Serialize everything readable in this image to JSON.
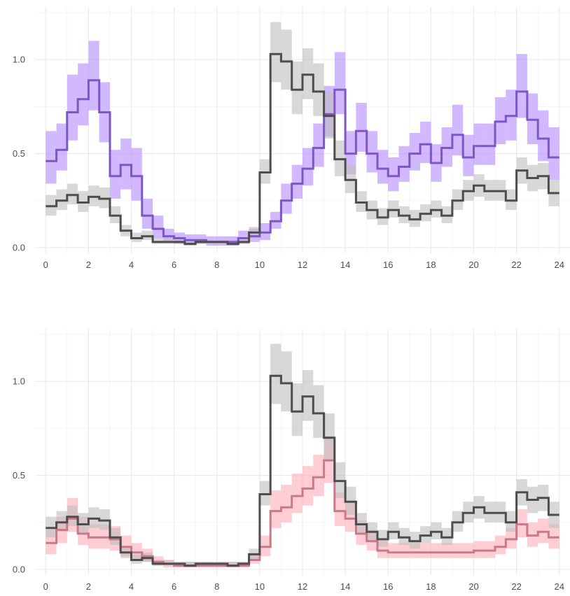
{
  "colors": {
    "background": "#ffffff",
    "grid_major": "#ebebeb",
    "grid_minor": "#f5f5f5",
    "tick_text": "#4d4d4d",
    "reference_line": "#4d4d4d",
    "reference_band": "#bebebe",
    "purple_line": "#7e57c2",
    "purple_band": "#b388ff",
    "pink_line": "#c97a8a",
    "pink_band": "#ffadb8"
  },
  "chart_data": [
    {
      "type": "line",
      "step": true,
      "grid": true,
      "x_ticks": [
        "0",
        "2",
        "4",
        "6",
        "8",
        "10",
        "12",
        "14",
        "16",
        "18",
        "20",
        "22",
        "24"
      ],
      "y_ticks": [
        "0.0",
        "0.5",
        "1.0"
      ],
      "xlim": [
        -0.5,
        24.5
      ],
      "ylim": [
        -0.03,
        1.28
      ],
      "x": [
        0,
        0.5,
        1,
        1.5,
        2,
        2.5,
        3,
        3.5,
        4,
        4.5,
        5,
        5.5,
        6,
        6.5,
        7,
        7.5,
        8,
        8.5,
        9,
        9.5,
        10,
        10.5,
        11,
        11.5,
        12,
        12.5,
        13,
        13.5,
        14,
        14.5,
        15,
        15.5,
        16,
        16.5,
        17,
        17.5,
        18,
        18.5,
        19,
        19.5,
        20,
        20.5,
        21,
        21.5,
        22,
        22.5,
        23,
        23.5
      ],
      "series": [
        {
          "color": "#7e57c2",
          "band_color": "#b388ff",
          "values": [
            0.46,
            0.52,
            0.72,
            0.79,
            0.89,
            0.72,
            0.38,
            0.44,
            0.38,
            0.17,
            0.1,
            0.06,
            0.05,
            0.04,
            0.04,
            0.03,
            0.03,
            0.03,
            0.05,
            0.06,
            0.08,
            0.14,
            0.25,
            0.34,
            0.42,
            0.53,
            0.71,
            0.84,
            0.5,
            0.62,
            0.5,
            0.42,
            0.38,
            0.43,
            0.5,
            0.55,
            0.45,
            0.53,
            0.6,
            0.48,
            0.54,
            0.54,
            0.67,
            0.7,
            0.83,
            0.68,
            0.58,
            0.48
          ],
          "lower": [
            0.34,
            0.41,
            0.57,
            0.65,
            0.73,
            0.56,
            0.26,
            0.31,
            0.25,
            0.1,
            0.05,
            0.03,
            0.02,
            0.02,
            0.02,
            0.01,
            0.01,
            0.01,
            0.02,
            0.03,
            0.04,
            0.1,
            0.18,
            0.26,
            0.33,
            0.43,
            0.59,
            0.71,
            0.39,
            0.51,
            0.4,
            0.34,
            0.3,
            0.35,
            0.41,
            0.45,
            0.35,
            0.43,
            0.49,
            0.38,
            0.44,
            0.44,
            0.55,
            0.57,
            0.69,
            0.55,
            0.46,
            0.36
          ],
          "upper": [
            0.62,
            0.66,
            0.92,
            0.98,
            1.1,
            0.88,
            0.52,
            0.58,
            0.53,
            0.26,
            0.17,
            0.1,
            0.08,
            0.07,
            0.07,
            0.06,
            0.06,
            0.06,
            0.09,
            0.1,
            0.13,
            0.19,
            0.34,
            0.44,
            0.53,
            0.66,
            0.86,
            1.04,
            0.62,
            0.77,
            0.62,
            0.52,
            0.48,
            0.54,
            0.61,
            0.67,
            0.55,
            0.64,
            0.76,
            0.6,
            0.66,
            0.66,
            0.8,
            0.84,
            1.03,
            0.82,
            0.73,
            0.64
          ]
        },
        {
          "color": "#4d4d4d",
          "band_color": "#bebebe",
          "values": [
            0.22,
            0.25,
            0.28,
            0.24,
            0.27,
            0.26,
            0.17,
            0.09,
            0.05,
            0.06,
            0.03,
            0.03,
            0.03,
            0.02,
            0.03,
            0.03,
            0.03,
            0.02,
            0.03,
            0.08,
            0.4,
            1.03,
            0.99,
            0.84,
            0.92,
            0.83,
            0.7,
            0.47,
            0.36,
            0.24,
            0.2,
            0.16,
            0.2,
            0.17,
            0.15,
            0.18,
            0.2,
            0.17,
            0.25,
            0.3,
            0.33,
            0.3,
            0.3,
            0.25,
            0.41,
            0.37,
            0.38,
            0.29
          ],
          "lower": [
            0.17,
            0.2,
            0.23,
            0.19,
            0.22,
            0.21,
            0.13,
            0.06,
            0.03,
            0.04,
            0.02,
            0.02,
            0.02,
            0.01,
            0.02,
            0.02,
            0.02,
            0.01,
            0.02,
            0.05,
            0.34,
            0.88,
            0.84,
            0.71,
            0.79,
            0.7,
            0.58,
            0.38,
            0.29,
            0.19,
            0.15,
            0.12,
            0.16,
            0.13,
            0.11,
            0.14,
            0.16,
            0.13,
            0.2,
            0.25,
            0.27,
            0.25,
            0.25,
            0.2,
            0.34,
            0.3,
            0.31,
            0.22
          ],
          "upper": [
            0.28,
            0.31,
            0.34,
            0.3,
            0.33,
            0.32,
            0.22,
            0.12,
            0.08,
            0.09,
            0.05,
            0.05,
            0.04,
            0.04,
            0.04,
            0.04,
            0.04,
            0.04,
            0.04,
            0.11,
            0.47,
            1.2,
            1.16,
            0.99,
            1.06,
            0.98,
            0.83,
            0.57,
            0.44,
            0.3,
            0.25,
            0.21,
            0.25,
            0.22,
            0.2,
            0.23,
            0.25,
            0.22,
            0.31,
            0.36,
            0.39,
            0.36,
            0.36,
            0.31,
            0.48,
            0.44,
            0.45,
            0.36
          ]
        }
      ]
    },
    {
      "type": "line",
      "step": true,
      "grid": true,
      "x_ticks": [
        "0",
        "2",
        "4",
        "6",
        "8",
        "10",
        "12",
        "14",
        "16",
        "18",
        "20",
        "22",
        "24"
      ],
      "y_ticks": [
        "0.0",
        "0.5",
        "1.0"
      ],
      "xlim": [
        -0.5,
        24.5
      ],
      "ylim": [
        -0.03,
        1.28
      ],
      "x": [
        0,
        0.5,
        1,
        1.5,
        2,
        2.5,
        3,
        3.5,
        4,
        4.5,
        5,
        5.5,
        6,
        6.5,
        7,
        7.5,
        8,
        8.5,
        9,
        9.5,
        10,
        10.5,
        11,
        11.5,
        12,
        12.5,
        13,
        13.5,
        14,
        14.5,
        15,
        15.5,
        16,
        16.5,
        17,
        17.5,
        18,
        18.5,
        19,
        19.5,
        20,
        20.5,
        21,
        21.5,
        22,
        22.5,
        23,
        23.5
      ],
      "series": [
        {
          "color": "#c97a8a",
          "band_color": "#ffadb8",
          "values": [
            0.14,
            0.21,
            0.27,
            0.19,
            0.17,
            0.17,
            0.16,
            0.12,
            0.09,
            0.07,
            0.04,
            0.03,
            0.02,
            0.02,
            0.02,
            0.02,
            0.02,
            0.02,
            0.02,
            0.05,
            0.12,
            0.31,
            0.33,
            0.39,
            0.43,
            0.49,
            0.58,
            0.31,
            0.27,
            0.19,
            0.15,
            0.1,
            0.09,
            0.09,
            0.09,
            0.09,
            0.09,
            0.09,
            0.09,
            0.09,
            0.1,
            0.1,
            0.12,
            0.16,
            0.24,
            0.18,
            0.2,
            0.17
          ],
          "lower": [
            0.08,
            0.14,
            0.2,
            0.13,
            0.11,
            0.11,
            0.1,
            0.07,
            0.05,
            0.04,
            0.02,
            0.01,
            0.01,
            0.01,
            0.01,
            0.01,
            0.01,
            0.01,
            0.01,
            0.03,
            0.07,
            0.22,
            0.25,
            0.3,
            0.34,
            0.39,
            0.46,
            0.23,
            0.2,
            0.13,
            0.1,
            0.06,
            0.06,
            0.06,
            0.06,
            0.06,
            0.06,
            0.06,
            0.06,
            0.06,
            0.06,
            0.06,
            0.08,
            0.11,
            0.17,
            0.12,
            0.14,
            0.11
          ],
          "upper": [
            0.21,
            0.28,
            0.38,
            0.28,
            0.24,
            0.24,
            0.23,
            0.18,
            0.14,
            0.11,
            0.07,
            0.05,
            0.04,
            0.04,
            0.04,
            0.04,
            0.04,
            0.04,
            0.04,
            0.08,
            0.18,
            0.42,
            0.45,
            0.51,
            0.55,
            0.61,
            0.71,
            0.41,
            0.36,
            0.26,
            0.21,
            0.15,
            0.14,
            0.14,
            0.14,
            0.14,
            0.14,
            0.14,
            0.14,
            0.14,
            0.15,
            0.15,
            0.18,
            0.22,
            0.32,
            0.25,
            0.27,
            0.24
          ]
        },
        {
          "color": "#4d4d4d",
          "band_color": "#bebebe",
          "values": [
            0.22,
            0.25,
            0.28,
            0.24,
            0.27,
            0.26,
            0.17,
            0.09,
            0.05,
            0.06,
            0.03,
            0.03,
            0.03,
            0.02,
            0.03,
            0.03,
            0.03,
            0.02,
            0.03,
            0.08,
            0.4,
            1.03,
            0.99,
            0.84,
            0.92,
            0.83,
            0.7,
            0.47,
            0.36,
            0.24,
            0.2,
            0.16,
            0.2,
            0.17,
            0.15,
            0.18,
            0.2,
            0.17,
            0.25,
            0.3,
            0.33,
            0.3,
            0.3,
            0.25,
            0.41,
            0.37,
            0.38,
            0.29
          ],
          "lower": [
            0.17,
            0.2,
            0.23,
            0.19,
            0.22,
            0.21,
            0.13,
            0.06,
            0.03,
            0.04,
            0.02,
            0.02,
            0.02,
            0.01,
            0.02,
            0.02,
            0.02,
            0.01,
            0.02,
            0.05,
            0.34,
            0.88,
            0.84,
            0.71,
            0.79,
            0.7,
            0.58,
            0.38,
            0.29,
            0.19,
            0.15,
            0.12,
            0.16,
            0.13,
            0.11,
            0.14,
            0.16,
            0.13,
            0.2,
            0.25,
            0.27,
            0.25,
            0.25,
            0.2,
            0.34,
            0.3,
            0.31,
            0.22
          ],
          "upper": [
            0.28,
            0.31,
            0.34,
            0.3,
            0.33,
            0.32,
            0.22,
            0.12,
            0.08,
            0.09,
            0.05,
            0.05,
            0.04,
            0.04,
            0.04,
            0.04,
            0.04,
            0.04,
            0.04,
            0.11,
            0.47,
            1.2,
            1.16,
            0.99,
            1.06,
            0.98,
            0.83,
            0.57,
            0.44,
            0.3,
            0.25,
            0.21,
            0.25,
            0.22,
            0.2,
            0.23,
            0.25,
            0.22,
            0.31,
            0.36,
            0.39,
            0.36,
            0.36,
            0.31,
            0.48,
            0.44,
            0.45,
            0.36
          ]
        }
      ]
    }
  ]
}
